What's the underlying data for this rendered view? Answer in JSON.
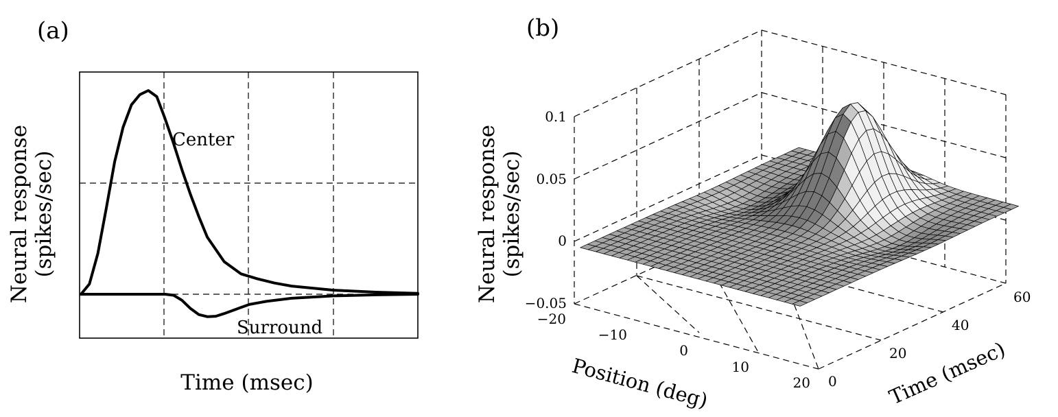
{
  "chart_data": [
    {
      "panel": "(a)",
      "type": "line",
      "xlabel": "Time (msec)",
      "ylabel_lines": [
        "Neural response",
        "(spikes/sec)"
      ],
      "grid": true,
      "series": [
        {
          "name": "Center",
          "x": [
            0,
            2,
            4,
            6,
            8,
            10,
            12,
            14,
            16,
            18,
            20,
            22,
            24,
            26,
            28,
            30,
            34,
            38,
            42,
            46,
            50,
            60,
            70,
            80
          ],
          "values": [
            0,
            0.05,
            0.2,
            0.42,
            0.65,
            0.82,
            0.93,
            0.98,
            1.0,
            0.97,
            0.86,
            0.74,
            0.61,
            0.49,
            0.38,
            0.28,
            0.16,
            0.1,
            0.075,
            0.055,
            0.04,
            0.02,
            0.01,
            0.004
          ]
        },
        {
          "name": "Surround",
          "x": [
            0,
            10,
            20,
            22,
            24,
            26,
            28,
            30,
            32,
            34,
            36,
            38,
            40,
            44,
            50,
            60,
            70,
            80
          ],
          "values": [
            0,
            0,
            0,
            -0.005,
            -0.03,
            -0.07,
            -0.1,
            -0.11,
            -0.108,
            -0.095,
            -0.08,
            -0.065,
            -0.05,
            -0.035,
            -0.02,
            -0.008,
            -0.003,
            0
          ]
        }
      ]
    },
    {
      "panel": "(b)",
      "type": "surface",
      "xlabel": "Position (deg)",
      "ylabel": "Time (msec)",
      "zlabel_lines": [
        "Neural response",
        "(spikes/sec)"
      ],
      "xticks": [
        "−20",
        "−10",
        "0",
        "10",
        "20"
      ],
      "yticks": [
        "0",
        "20",
        "40",
        "60"
      ],
      "zticks": [
        "−0.05",
        "0",
        "0.05",
        "0.1"
      ],
      "xlim": [
        -20,
        20
      ],
      "ylim": [
        0,
        60
      ],
      "zlim": [
        -0.05,
        0.1
      ],
      "grid": true,
      "surface": "center-surround kernel: peak approx. 0.08 at position 0 deg, time approx. 10 msec; weak negative surround at approx. +/-12 deg, time approx. 20 msec"
    }
  ]
}
